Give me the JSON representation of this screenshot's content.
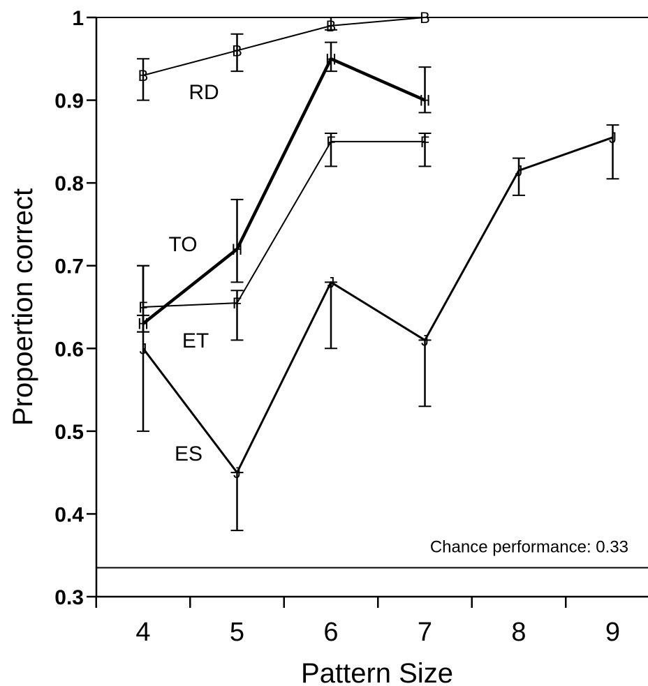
{
  "chart_data": {
    "type": "line",
    "title": "",
    "xlabel": "Pattern Size",
    "ylabel": "Propoertion correct",
    "xlim": [
      3.5,
      10
    ],
    "ylim": [
      0.3,
      1.0
    ],
    "x_ticks": [
      4,
      5,
      6,
      7,
      8,
      9
    ],
    "y_ticks": [
      0.3,
      0.4,
      0.5,
      0.6,
      0.7,
      0.8,
      0.9,
      1.0
    ],
    "y_tick_labels": [
      "0.3",
      "0.4",
      "0.5",
      "0.6",
      "0.7",
      "0.8",
      "0.9",
      "1"
    ],
    "grid": false,
    "series": [
      {
        "name": "RD",
        "marker": "B",
        "x": [
          4,
          5,
          6,
          7
        ],
        "y": [
          0.93,
          0.96,
          0.99,
          1.0
        ],
        "error_low": [
          0.9,
          0.935,
          0.985,
          1.0
        ],
        "error_high": [
          0.95,
          0.98,
          1.0,
          1.0
        ]
      },
      {
        "name": "TO",
        "marker": "H",
        "x": [
          4,
          5,
          6,
          7
        ],
        "y": [
          0.63,
          0.72,
          0.95,
          0.9
        ],
        "error_low": [
          0.62,
          0.68,
          0.935,
          0.885
        ],
        "error_high": [
          0.64,
          0.78,
          0.97,
          0.94
        ]
      },
      {
        "name": "ET",
        "marker": "F",
        "x": [
          4,
          5,
          6,
          7
        ],
        "y": [
          0.65,
          0.655,
          0.85,
          0.85
        ],
        "error_low": [
          0.62,
          0.61,
          0.82,
          0.82
        ],
        "error_high": [
          0.7,
          0.67,
          0.86,
          0.86
        ]
      },
      {
        "name": "ES",
        "marker": "J",
        "x": [
          4,
          5,
          6,
          7,
          8,
          9
        ],
        "y": [
          0.6,
          0.45,
          0.68,
          0.61,
          0.815,
          0.855
        ],
        "error_low": [
          0.5,
          0.38,
          0.6,
          0.53,
          0.785,
          0.805
        ],
        "error_high": [
          0.7,
          0.45,
          0.68,
          0.61,
          0.83,
          0.87
        ]
      }
    ],
    "reference_lines": [
      {
        "y": 1.0
      },
      {
        "y": 0.335,
        "label": "Chance performance: 0.33"
      }
    ]
  }
}
